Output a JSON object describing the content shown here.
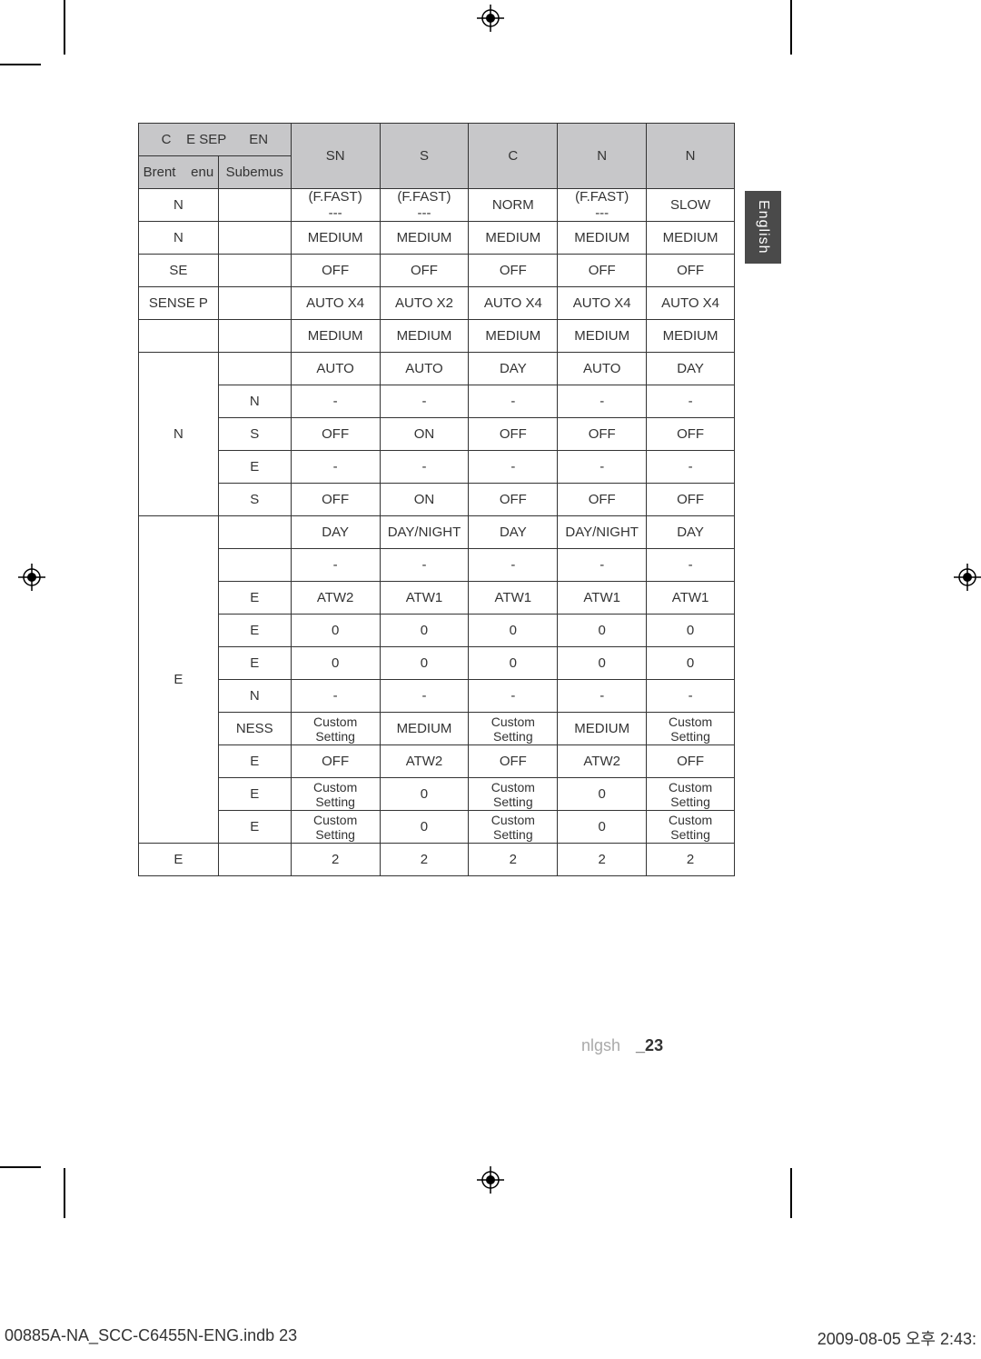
{
  "side_tab": "English",
  "page_footer_text": "nlgsh",
  "page_number": "_23",
  "file_name": "00885A-NA_SCC-C6455N-ENG.indb   23",
  "file_date": "2009-08-05   오후 2:43:",
  "colors": {
    "header_bg": "#c7c7c9",
    "border": "#333333",
    "text": "#333333",
    "side_tab_bg": "#4a4a4a",
    "side_tab_text": "#ffffff",
    "footer_gray": "#aaaaaa"
  },
  "table": {
    "header_group_a": "C",
    "header_group_b": "E SEP",
    "header_group_c": "EN",
    "header_parent": "Brent",
    "header_menu": "enu",
    "header_sub": "Subemus",
    "col_headers": [
      "SN",
      "S",
      "C",
      "N",
      "N"
    ],
    "rows": [
      {
        "parent": "N",
        "sub": "",
        "c0": "(F.FAST)\n---",
        "c1": "(F.FAST)\n---",
        "c2": "NORM",
        "c3": "(F.FAST)\n---",
        "c4": "SLOW"
      },
      {
        "parent": "N",
        "sub": "",
        "c0": "MEDIUM",
        "c1": "MEDIUM",
        "c2": "MEDIUM",
        "c3": "MEDIUM",
        "c4": "MEDIUM"
      },
      {
        "parent": "SE",
        "sub": "",
        "c0": "OFF",
        "c1": "OFF",
        "c2": "OFF",
        "c3": "OFF",
        "c4": "OFF"
      },
      {
        "parent": "SENSE P",
        "sub": "",
        "c0": "AUTO X4",
        "c1": "AUTO X2",
        "c2": "AUTO X4",
        "c3": "AUTO X4",
        "c4": "AUTO X4"
      },
      {
        "parent": "",
        "sub": "",
        "c0": "MEDIUM",
        "c1": "MEDIUM",
        "c2": "MEDIUM",
        "c3": "MEDIUM",
        "c4": "MEDIUM"
      }
    ],
    "group_n": {
      "parent_label": "N",
      "rows": [
        {
          "sub": "",
          "c0": "AUTO",
          "c1": "AUTO",
          "c2": "DAY",
          "c3": "AUTO",
          "c4": "DAY"
        },
        {
          "sub": "N",
          "c0": "-",
          "c1": "-",
          "c2": "-",
          "c3": "-",
          "c4": "-"
        },
        {
          "sub": "S",
          "c0": "OFF",
          "c1": "ON",
          "c2": "OFF",
          "c3": "OFF",
          "c4": "OFF"
        },
        {
          "sub": "E",
          "c0": "-",
          "c1": "-",
          "c2": "-",
          "c3": "-",
          "c4": "-"
        },
        {
          "sub": "S",
          "c0": "OFF",
          "c1": "ON",
          "c2": "OFF",
          "c3": "OFF",
          "c4": "OFF"
        }
      ]
    },
    "group_e": {
      "parent_label": "E",
      "rows": [
        {
          "sub": "",
          "c0": "DAY",
          "c1": "DAY/NIGHT",
          "c2": "DAY",
          "c3": "DAY/NIGHT",
          "c4": "DAY"
        },
        {
          "sub": "",
          "c0": "-",
          "c1": "-",
          "c2": "-",
          "c3": "-",
          "c4": "-"
        },
        {
          "sub": "E",
          "c0": "ATW2",
          "c1": "ATW1",
          "c2": "ATW1",
          "c3": "ATW1",
          "c4": "ATW1"
        },
        {
          "sub": "E",
          "c0": "0",
          "c1": "0",
          "c2": "0",
          "c3": "0",
          "c4": "0"
        },
        {
          "sub": "E",
          "c0": "0",
          "c1": "0",
          "c2": "0",
          "c3": "0",
          "c4": "0"
        },
        {
          "sub": "N",
          "c0": "-",
          "c1": "-",
          "c2": "-",
          "c3": "-",
          "c4": "-"
        },
        {
          "sub": "NESS",
          "c0": "Custom Setting",
          "c1": "MEDIUM",
          "c2": "Custom Setting",
          "c3": "MEDIUM",
          "c4": "Custom Setting"
        },
        {
          "sub": "E",
          "c0": "OFF",
          "c1": "ATW2",
          "c2": "OFF",
          "c3": "ATW2",
          "c4": "OFF"
        },
        {
          "sub": "E",
          "c0": "Custom Setting",
          "c1": "0",
          "c2": "Custom Setting",
          "c3": "0",
          "c4": "Custom Setting"
        },
        {
          "sub": "E",
          "c0": "Custom Setting",
          "c1": "0",
          "c2": "Custom Setting",
          "c3": "0",
          "c4": "Custom Setting"
        }
      ]
    },
    "last_row": {
      "parent": "E",
      "sub": "",
      "c0": "2",
      "c1": "2",
      "c2": "2",
      "c3": "2",
      "c4": "2"
    }
  }
}
